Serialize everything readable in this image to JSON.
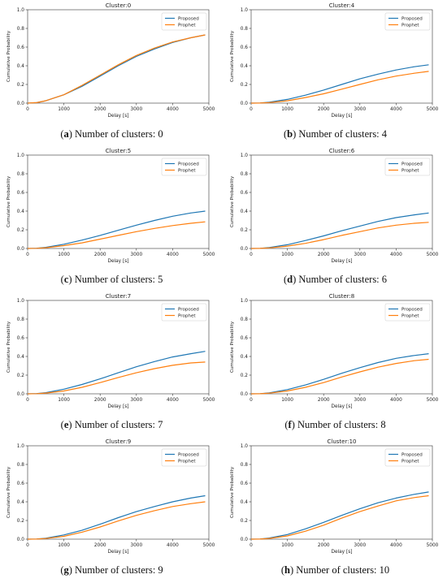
{
  "panels": [
    {
      "label": "a",
      "caption": "Number of clusters: 0"
    },
    {
      "label": "b",
      "caption": "Number of clusters: 4"
    },
    {
      "label": "c",
      "caption": "Number of clusters: 5"
    },
    {
      "label": "d",
      "caption": "Number of clusters: 6"
    },
    {
      "label": "e",
      "caption": "Number of clusters: 7"
    },
    {
      "label": "f",
      "caption": "Number of clusters: 8"
    },
    {
      "label": "g",
      "caption": "Number of clusters: 9"
    },
    {
      "label": "h",
      "caption": "Number of clusters: 10"
    }
  ],
  "colors": {
    "Proposed": "#1f77b4",
    "Prophet": "#ff7f0e"
  },
  "chart_data": [
    {
      "type": "line",
      "title": "Cluster:0",
      "xlabel": "Delay [s]",
      "ylabel": "Cumulative Probability",
      "xlim": [
        0,
        5000
      ],
      "ylim": [
        0,
        1.0
      ],
      "xticks": [
        0,
        1000,
        2000,
        3000,
        4000,
        5000
      ],
      "yticks": [
        0.0,
        0.2,
        0.4,
        0.6,
        0.8,
        1.0
      ],
      "legend": "top-right",
      "x": [
        0,
        250,
        500,
        1000,
        1500,
        2000,
        2500,
        3000,
        3500,
        4000,
        4500,
        4900
      ],
      "series": [
        {
          "name": "Proposed",
          "values": [
            0,
            0.005,
            0.025,
            0.09,
            0.18,
            0.29,
            0.4,
            0.5,
            0.58,
            0.65,
            0.7,
            0.73
          ]
        },
        {
          "name": "Prophet",
          "values": [
            0,
            0.005,
            0.025,
            0.09,
            0.19,
            0.3,
            0.41,
            0.51,
            0.59,
            0.655,
            0.7,
            0.73
          ]
        }
      ]
    },
    {
      "type": "line",
      "title": "Cluster:4",
      "xlabel": "Delay [s]",
      "ylabel": "Cumulative Probability",
      "xlim": [
        0,
        5000
      ],
      "ylim": [
        0,
        1.0
      ],
      "xticks": [
        0,
        1000,
        2000,
        3000,
        4000,
        5000
      ],
      "yticks": [
        0.0,
        0.2,
        0.4,
        0.6,
        0.8,
        1.0
      ],
      "legend": "top-right",
      "x": [
        0,
        250,
        500,
        1000,
        1500,
        2000,
        2500,
        3000,
        3500,
        4000,
        4500,
        4900
      ],
      "series": [
        {
          "name": "Proposed",
          "values": [
            0,
            0.002,
            0.01,
            0.04,
            0.085,
            0.14,
            0.2,
            0.26,
            0.31,
            0.355,
            0.39,
            0.41
          ]
        },
        {
          "name": "Prophet",
          "values": [
            0,
            0.001,
            0.006,
            0.025,
            0.06,
            0.1,
            0.15,
            0.2,
            0.25,
            0.29,
            0.32,
            0.34
          ]
        }
      ]
    },
    {
      "type": "line",
      "title": "Cluster:5",
      "xlabel": "Delay [s]",
      "ylabel": "Cumulative Probability",
      "xlim": [
        0,
        5000
      ],
      "ylim": [
        0,
        1.0
      ],
      "xticks": [
        0,
        1000,
        2000,
        3000,
        4000,
        5000
      ],
      "yticks": [
        0.0,
        0.2,
        0.4,
        0.6,
        0.8,
        1.0
      ],
      "legend": "top-right",
      "x": [
        0,
        250,
        500,
        1000,
        1500,
        2000,
        2500,
        3000,
        3500,
        4000,
        4500,
        4900
      ],
      "series": [
        {
          "name": "Proposed",
          "values": [
            0,
            0.003,
            0.012,
            0.045,
            0.09,
            0.14,
            0.195,
            0.25,
            0.3,
            0.345,
            0.38,
            0.4
          ]
        },
        {
          "name": "Prophet",
          "values": [
            0,
            0.002,
            0.008,
            0.03,
            0.06,
            0.1,
            0.14,
            0.18,
            0.215,
            0.245,
            0.27,
            0.285
          ]
        }
      ]
    },
    {
      "type": "line",
      "title": "Cluster:6",
      "xlabel": "Delay [s]",
      "ylabel": "Cumulative Probability",
      "xlim": [
        0,
        5000
      ],
      "ylim": [
        0,
        1.0
      ],
      "xticks": [
        0,
        1000,
        2000,
        3000,
        4000,
        5000
      ],
      "yticks": [
        0.0,
        0.2,
        0.4,
        0.6,
        0.8,
        1.0
      ],
      "legend": "top-right",
      "x": [
        0,
        250,
        500,
        1000,
        1500,
        2000,
        2500,
        3000,
        3500,
        4000,
        4500,
        4900
      ],
      "series": [
        {
          "name": "Proposed",
          "values": [
            0,
            0.002,
            0.01,
            0.04,
            0.085,
            0.135,
            0.19,
            0.24,
            0.29,
            0.33,
            0.36,
            0.38
          ]
        },
        {
          "name": "Prophet",
          "values": [
            0,
            0.001,
            0.006,
            0.025,
            0.055,
            0.095,
            0.14,
            0.18,
            0.22,
            0.25,
            0.27,
            0.28
          ]
        }
      ]
    },
    {
      "type": "line",
      "title": "Cluster:7",
      "xlabel": "Delay [s]",
      "ylabel": "Cumulative Probability",
      "xlim": [
        0,
        5000
      ],
      "ylim": [
        0,
        1.0
      ],
      "xticks": [
        0,
        1000,
        2000,
        3000,
        4000,
        5000
      ],
      "yticks": [
        0.0,
        0.2,
        0.4,
        0.6,
        0.8,
        1.0
      ],
      "legend": "top-right",
      "x": [
        0,
        250,
        500,
        1000,
        1500,
        2000,
        2500,
        3000,
        3500,
        4000,
        4500,
        4900
      ],
      "series": [
        {
          "name": "Proposed",
          "values": [
            0,
            0.003,
            0.012,
            0.05,
            0.1,
            0.16,
            0.225,
            0.29,
            0.345,
            0.395,
            0.43,
            0.455
          ]
        },
        {
          "name": "Prophet",
          "values": [
            0,
            0.002,
            0.008,
            0.03,
            0.07,
            0.12,
            0.175,
            0.225,
            0.27,
            0.305,
            0.33,
            0.34
          ]
        }
      ]
    },
    {
      "type": "line",
      "title": "Cluster:8",
      "xlabel": "Delay [s]",
      "ylabel": "Cumulative Probability",
      "xlim": [
        0,
        5000
      ],
      "ylim": [
        0,
        1.0
      ],
      "xticks": [
        0,
        1000,
        2000,
        3000,
        4000,
        5000
      ],
      "yticks": [
        0.0,
        0.2,
        0.4,
        0.6,
        0.8,
        1.0
      ],
      "legend": "top-right",
      "x": [
        0,
        250,
        500,
        1000,
        1500,
        2000,
        2500,
        3000,
        3500,
        4000,
        4500,
        4900
      ],
      "series": [
        {
          "name": "Proposed",
          "values": [
            0,
            0.002,
            0.01,
            0.045,
            0.095,
            0.155,
            0.22,
            0.28,
            0.335,
            0.38,
            0.41,
            0.43
          ]
        },
        {
          "name": "Prophet",
          "values": [
            0,
            0.001,
            0.007,
            0.03,
            0.07,
            0.12,
            0.18,
            0.235,
            0.285,
            0.325,
            0.355,
            0.37
          ]
        }
      ]
    },
    {
      "type": "line",
      "title": "Cluster:9",
      "xlabel": "Delay [s]",
      "ylabel": "Cumulative Probability",
      "xlim": [
        0,
        5000
      ],
      "ylim": [
        0,
        1.0
      ],
      "xticks": [
        0,
        1000,
        2000,
        3000,
        4000,
        5000
      ],
      "yticks": [
        0.0,
        0.2,
        0.4,
        0.6,
        0.8,
        1.0
      ],
      "legend": "top-right",
      "x": [
        0,
        250,
        500,
        1000,
        1500,
        2000,
        2500,
        3000,
        3500,
        4000,
        4500,
        4900
      ],
      "series": [
        {
          "name": "Proposed",
          "values": [
            0,
            0.002,
            0.01,
            0.045,
            0.095,
            0.16,
            0.23,
            0.295,
            0.35,
            0.4,
            0.44,
            0.465
          ]
        },
        {
          "name": "Prophet",
          "values": [
            0,
            0.001,
            0.007,
            0.03,
            0.075,
            0.13,
            0.195,
            0.255,
            0.305,
            0.35,
            0.38,
            0.4
          ]
        }
      ]
    },
    {
      "type": "line",
      "title": "Cluster:10",
      "xlabel": "Delay [s]",
      "ylabel": "Cumulative Probability",
      "xlim": [
        0,
        5000
      ],
      "ylim": [
        0,
        1.0
      ],
      "xticks": [
        0,
        1000,
        2000,
        3000,
        4000,
        5000
      ],
      "yticks": [
        0.0,
        0.2,
        0.4,
        0.6,
        0.8,
        1.0
      ],
      "legend": "top-right",
      "x": [
        0,
        250,
        500,
        1000,
        1500,
        2000,
        2500,
        3000,
        3500,
        4000,
        4500,
        4900
      ],
      "series": [
        {
          "name": "Proposed",
          "values": [
            0,
            0.002,
            0.012,
            0.05,
            0.11,
            0.18,
            0.255,
            0.325,
            0.39,
            0.44,
            0.48,
            0.505
          ]
        },
        {
          "name": "Prophet",
          "values": [
            0,
            0.001,
            0.008,
            0.035,
            0.085,
            0.15,
            0.225,
            0.295,
            0.355,
            0.41,
            0.445,
            0.465
          ]
        }
      ]
    }
  ]
}
